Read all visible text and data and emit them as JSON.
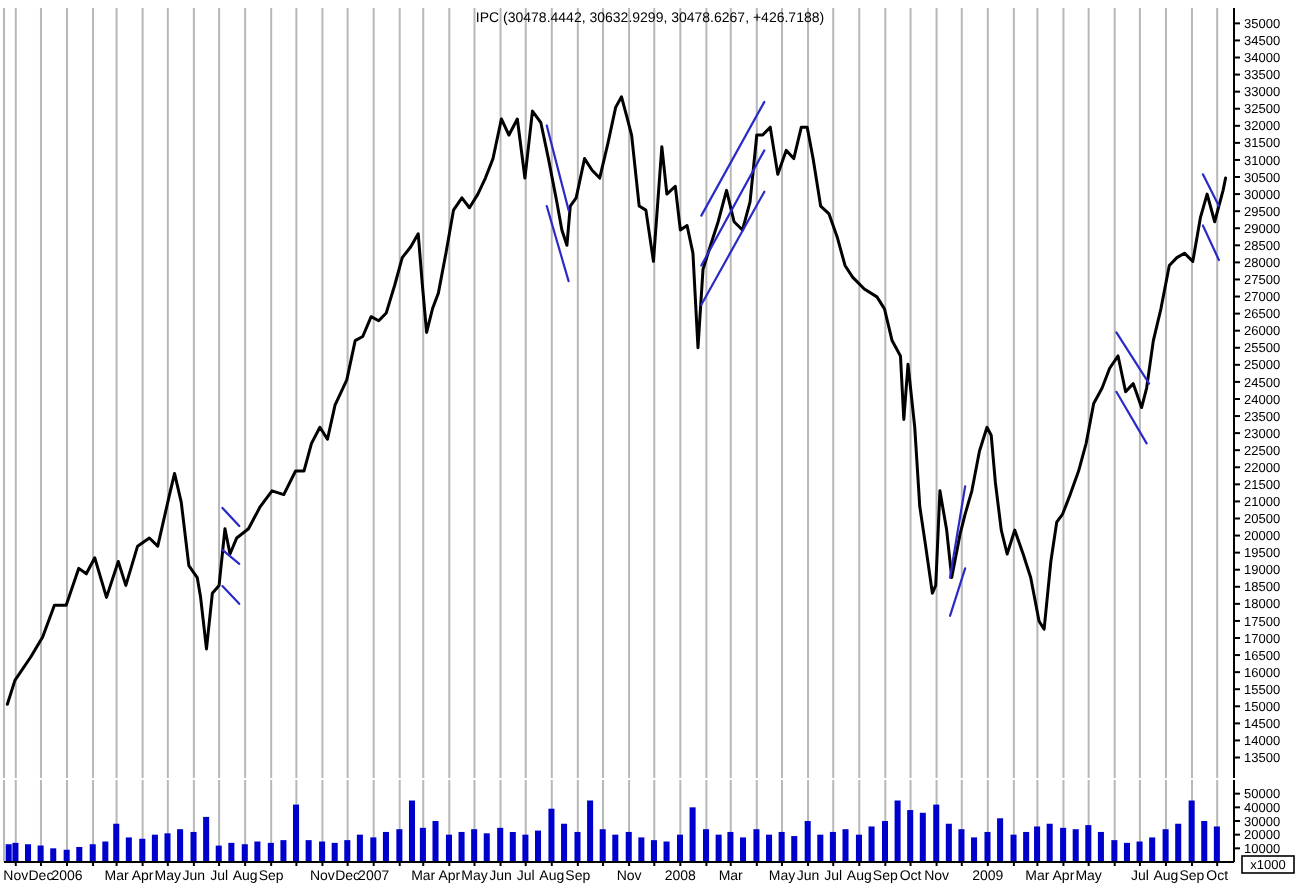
{
  "chart_data": [
    {
      "type": "line",
      "title": "IPC (30478.4442, 30632.9299, 30478.6267, +426.7188)",
      "xlim": [
        "2005-10-18",
        "2009-10-21"
      ],
      "xticks": [
        {
          "value": "2005-11",
          "label": null
        },
        {
          "value": "2005-12",
          "label": null
        },
        {
          "value": "2006-01",
          "label": null
        },
        {
          "value": "2006-02",
          "label": null
        },
        {
          "value": "2006-03",
          "label": null
        },
        {
          "value": "2006-04",
          "label": null
        },
        {
          "value": "2006-05",
          "label": null
        },
        {
          "value": "2006-06",
          "label": null
        },
        {
          "value": "2006-07",
          "label": null
        },
        {
          "value": "2006-08",
          "label": null
        },
        {
          "value": "2006-09",
          "label": null
        },
        {
          "value": "2006-10",
          "label": null
        },
        {
          "value": "2006-11",
          "label": null
        },
        {
          "value": "2006-12",
          "label": null
        },
        {
          "value": "2007-01",
          "label": null
        },
        {
          "value": "2007-02",
          "label": null
        },
        {
          "value": "2007-03",
          "label": null
        },
        {
          "value": "2007-04",
          "label": null
        },
        {
          "value": "2007-05",
          "label": null
        },
        {
          "value": "2007-06",
          "label": null
        },
        {
          "value": "2007-07",
          "label": null
        },
        {
          "value": "2007-08",
          "label": null
        },
        {
          "value": "2007-09",
          "label": null
        },
        {
          "value": "2007-10",
          "label": null
        },
        {
          "value": "2007-11",
          "label": null
        },
        {
          "value": "2007-12",
          "label": null
        },
        {
          "value": "2008-01",
          "label": null
        },
        {
          "value": "2008-02",
          "label": null
        },
        {
          "value": "2008-03",
          "label": null
        },
        {
          "value": "2008-04",
          "label": null
        },
        {
          "value": "2008-05",
          "label": null
        },
        {
          "value": "2008-06",
          "label": null
        },
        {
          "value": "2008-07",
          "label": null
        },
        {
          "value": "2008-08",
          "label": null
        },
        {
          "value": "2008-09",
          "label": null
        },
        {
          "value": "2008-10",
          "label": null
        },
        {
          "value": "2008-11",
          "label": null
        },
        {
          "value": "2008-12",
          "label": null
        },
        {
          "value": "2009-01",
          "label": null
        },
        {
          "value": "2009-02",
          "label": null
        },
        {
          "value": "2009-03",
          "label": null
        },
        {
          "value": "2009-04",
          "label": null
        },
        {
          "value": "2009-05",
          "label": null
        },
        {
          "value": "2009-06",
          "label": null
        },
        {
          "value": "2009-07",
          "label": null
        },
        {
          "value": "2009-08",
          "label": null
        },
        {
          "value": "2009-09",
          "label": null
        },
        {
          "value": "2009-10",
          "label": null
        }
      ],
      "ylim": [
        12900,
        35450
      ],
      "yticks": [
        35000,
        34500,
        34000,
        33500,
        33000,
        32500,
        32000,
        31500,
        31000,
        30500,
        30000,
        29500,
        29000,
        28500,
        28000,
        27500,
        27000,
        26500,
        26000,
        25500,
        25000,
        24500,
        24000,
        23500,
        23000,
        22500,
        22000,
        21500,
        21000,
        20500,
        20000,
        19500,
        19000,
        18500,
        18000,
        17500,
        17000,
        16500,
        16000,
        15500,
        15000,
        14500,
        14000,
        13500
      ],
      "grid": "x",
      "tick_labels": "y",
      "series": [
        {
          "color": "#000000",
          "x": [
            "2005-10-22",
            "2005-10-31",
            "2005-11-19",
            "2005-12-03",
            "2005-12-17",
            "2005-12-31",
            "2006-01-15",
            "2006-01-24",
            "2006-02-03",
            "2006-02-17",
            "2006-03-03",
            "2006-03-12",
            "2006-03-26",
            "2006-04-09",
            "2006-04-19",
            "2006-05-03",
            "2006-05-09",
            "2006-05-17",
            "2006-05-26",
            "2006-06-05",
            "2006-06-09",
            "2006-06-16",
            "2006-06-23",
            "2006-07-01",
            "2006-07-08",
            "2006-07-14",
            "2006-07-22",
            "2006-08-05",
            "2006-08-19",
            "2006-09-02",
            "2006-09-16",
            "2006-09-30",
            "2006-10-10",
            "2006-10-19",
            "2006-10-29",
            "2006-11-07",
            "2006-11-16",
            "2006-11-30",
            "2006-12-10",
            "2006-12-19",
            "2006-12-29",
            "2007-01-07",
            "2007-01-16",
            "2007-01-26",
            "2007-02-04",
            "2007-02-14",
            "2007-02-23",
            "2007-02-28",
            "2007-03-05",
            "2007-03-12",
            "2007-03-19",
            "2007-03-28",
            "2007-04-06",
            "2007-04-16",
            "2007-04-25",
            "2007-05-05",
            "2007-05-14",
            "2007-05-23",
            "2007-06-02",
            "2007-06-11",
            "2007-06-21",
            "2007-06-30",
            "2007-07-09",
            "2007-07-19",
            "2007-07-28",
            "2007-08-07",
            "2007-08-13",
            "2007-08-19",
            "2007-08-23",
            "2007-08-30",
            "2007-09-09",
            "2007-09-18",
            "2007-09-27",
            "2007-10-07",
            "2007-10-16",
            "2007-10-23",
            "2007-10-30",
            "2007-11-04",
            "2007-11-13",
            "2007-11-21",
            "2007-11-30",
            "2007-12-10",
            "2007-12-16",
            "2007-12-26",
            "2008-01-01",
            "2008-01-09",
            "2008-01-16",
            "2008-01-22",
            "2008-01-28",
            "2008-02-06",
            "2008-02-15",
            "2008-02-25",
            "2008-03-05",
            "2008-03-15",
            "2008-03-24",
            "2008-04-01",
            "2008-04-08",
            "2008-04-17",
            "2008-04-26",
            "2008-05-06",
            "2008-05-15",
            "2008-05-24",
            "2008-05-31",
            "2008-06-07",
            "2008-06-16",
            "2008-06-26",
            "2008-07-06",
            "2008-07-15",
            "2008-07-24",
            "2008-08-07",
            "2008-08-22",
            "2008-08-31",
            "2008-09-09",
            "2008-09-19",
            "2008-09-23",
            "2008-09-28",
            "2008-10-06",
            "2008-10-12",
            "2008-10-19",
            "2008-10-27",
            "2008-10-31",
            "2008-11-05",
            "2008-11-13",
            "2008-11-19",
            "2008-11-29",
            "2008-12-05",
            "2008-12-13",
            "2008-12-22",
            "2008-12-31",
            "2009-01-05",
            "2009-01-10",
            "2009-01-17",
            "2009-01-24",
            "2009-02-02",
            "2009-02-12",
            "2009-02-21",
            "2009-03-03",
            "2009-03-09",
            "2009-03-17",
            "2009-03-24",
            "2009-03-31",
            "2009-04-09",
            "2009-04-19",
            "2009-04-28",
            "2009-05-07",
            "2009-05-17",
            "2009-05-26",
            "2009-06-05",
            "2009-06-14",
            "2009-06-23",
            "2009-07-03",
            "2009-07-09",
            "2009-07-17",
            "2009-07-26",
            "2009-08-05",
            "2009-08-14",
            "2009-08-23",
            "2009-09-02",
            "2009-09-11",
            "2009-09-19",
            "2009-09-28",
            "2009-10-08",
            "2009-10-11"
          ],
          "values": [
            15060,
            15760,
            16450,
            17030,
            17960,
            17960,
            19040,
            18880,
            19350,
            18190,
            19240,
            18540,
            19690,
            19930,
            19690,
            21200,
            21820,
            20970,
            19120,
            18770,
            18190,
            16680,
            18310,
            18540,
            20200,
            19460,
            19930,
            20200,
            20850,
            21310,
            21200,
            21890,
            21890,
            22700,
            23170,
            22820,
            23820,
            24560,
            25710,
            25830,
            26410,
            26290,
            26520,
            27330,
            28140,
            28450,
            28840,
            27330,
            25950,
            26640,
            27100,
            28270,
            29530,
            29890,
            29600,
            30000,
            30470,
            31040,
            32200,
            31730,
            32200,
            30470,
            32430,
            32090,
            31040,
            29770,
            28950,
            28500,
            29650,
            29890,
            31040,
            30700,
            30470,
            31510,
            32540,
            32850,
            32200,
            31730,
            29650,
            29530,
            28030,
            31390,
            30000,
            30230,
            28950,
            29080,
            28270,
            25500,
            27800,
            28500,
            29190,
            30110,
            29190,
            28950,
            29770,
            31730,
            31730,
            31960,
            30580,
            31280,
            31040,
            31960,
            31960,
            31040,
            29650,
            29420,
            28720,
            27910,
            27570,
            27220,
            26990,
            26640,
            25710,
            25260,
            23400,
            25020,
            23170,
            20850,
            19690,
            18310,
            18540,
            21310,
            20160,
            18770,
            20050,
            20630,
            21310,
            22470,
            23170,
            22940,
            21550,
            20160,
            19460,
            20160,
            19460,
            18770,
            17490,
            17260,
            19240,
            20390,
            20630,
            21200,
            21890,
            22700,
            23870,
            24320,
            24900,
            25260,
            24210,
            24450,
            23750,
            24320,
            25710,
            26640,
            27910,
            28140,
            28270,
            28030,
            29310,
            30000,
            29190,
            30110,
            30470
          ]
        },
        {
          "color": "#2a2ac8",
          "x": [
            "2006-07-05",
            "2006-07-25"
          ],
          "values": [
            20810,
            20280
          ]
        },
        {
          "color": "#2a2ac8",
          "x": [
            "2006-07-05",
            "2006-07-25"
          ],
          "values": [
            19580,
            19170
          ]
        },
        {
          "color": "#2a2ac8",
          "x": [
            "2006-07-05",
            "2006-07-25"
          ],
          "values": [
            18520,
            18000
          ]
        },
        {
          "color": "#2a2ac8",
          "x": [
            "2007-07-26",
            "2007-08-21"
          ],
          "values": [
            32010,
            29530
          ]
        },
        {
          "color": "#2a2ac8",
          "x": [
            "2007-07-26",
            "2007-08-21"
          ],
          "values": [
            29650,
            27450
          ]
        },
        {
          "color": "#2a2ac8",
          "x": [
            "2008-01-26",
            "2008-04-10"
          ],
          "values": [
            29370,
            32700
          ]
        },
        {
          "color": "#2a2ac8",
          "x": [
            "2008-01-26",
            "2008-04-10"
          ],
          "values": [
            27910,
            31280
          ]
        },
        {
          "color": "#2a2ac8",
          "x": [
            "2008-01-26",
            "2008-04-10"
          ],
          "values": [
            26760,
            30070
          ]
        },
        {
          "color": "#2a2ac8",
          "x": [
            "2008-11-17",
            "2008-12-05"
          ],
          "values": [
            18770,
            21440
          ]
        },
        {
          "color": "#2a2ac8",
          "x": [
            "2008-11-17",
            "2008-12-05"
          ],
          "values": [
            17650,
            19040
          ]
        },
        {
          "color": "#2a2ac8",
          "x": [
            "2009-06-03",
            "2009-07-12"
          ],
          "values": [
            25950,
            24450
          ]
        },
        {
          "color": "#2a2ac8",
          "x": [
            "2009-06-03",
            "2009-07-09"
          ],
          "values": [
            24210,
            22700
          ]
        },
        {
          "color": "#2a2ac8",
          "x": [
            "2009-09-14",
            "2009-10-03"
          ],
          "values": [
            30580,
            29650
          ]
        },
        {
          "color": "#2a2ac8",
          "x": [
            "2009-09-14",
            "2009-10-03"
          ],
          "values": [
            29080,
            28070
          ]
        }
      ]
    },
    {
      "type": "bar",
      "ylabel": "x1000",
      "color": "#0000cc",
      "xlim": [
        "2005-10-18",
        "2009-10-21"
      ],
      "xticks": [
        {
          "value": "2005-11",
          "label": "Nov"
        },
        {
          "value": "2005-12",
          "label": "Dec"
        },
        {
          "value": "2006-01",
          "label": "2006"
        },
        {
          "value": "2006-02",
          "label": null
        },
        {
          "value": "2006-03",
          "label": "Mar"
        },
        {
          "value": "2006-04",
          "label": "Apr"
        },
        {
          "value": "2006-05",
          "label": "May"
        },
        {
          "value": "2006-06",
          "label": "Jun"
        },
        {
          "value": "2006-07",
          "label": "Jul"
        },
        {
          "value": "2006-08",
          "label": "Aug"
        },
        {
          "value": "2006-09",
          "label": "Sep"
        },
        {
          "value": "2006-10",
          "label": null
        },
        {
          "value": "2006-11",
          "label": "Nov"
        },
        {
          "value": "2006-12",
          "label": "Dec"
        },
        {
          "value": "2007-01",
          "label": "2007"
        },
        {
          "value": "2007-02",
          "label": null
        },
        {
          "value": "2007-03",
          "label": "Mar"
        },
        {
          "value": "2007-04",
          "label": "Apr"
        },
        {
          "value": "2007-05",
          "label": "May"
        },
        {
          "value": "2007-06",
          "label": "Jun"
        },
        {
          "value": "2007-07",
          "label": "Jul"
        },
        {
          "value": "2007-08",
          "label": "Aug"
        },
        {
          "value": "2007-09",
          "label": "Sep"
        },
        {
          "value": "2007-10",
          "label": null
        },
        {
          "value": "2007-11",
          "label": "Nov"
        },
        {
          "value": "2007-12",
          "label": null
        },
        {
          "value": "2008-01",
          "label": "2008"
        },
        {
          "value": "2008-02",
          "label": null
        },
        {
          "value": "2008-03",
          "label": "Mar"
        },
        {
          "value": "2008-04",
          "label": null
        },
        {
          "value": "2008-05",
          "label": "May"
        },
        {
          "value": "2008-06",
          "label": "Jun"
        },
        {
          "value": "2008-07",
          "label": "Jul"
        },
        {
          "value": "2008-08",
          "label": "Aug"
        },
        {
          "value": "2008-09",
          "label": "Sep"
        },
        {
          "value": "2008-10",
          "label": "Oct"
        },
        {
          "value": "2008-11",
          "label": "Nov"
        },
        {
          "value": "2008-12",
          "label": null
        },
        {
          "value": "2009-01",
          "label": "2009"
        },
        {
          "value": "2009-02",
          "label": null
        },
        {
          "value": "2009-03",
          "label": "Mar"
        },
        {
          "value": "2009-04",
          "label": "Apr"
        },
        {
          "value": "2009-05",
          "label": "May"
        },
        {
          "value": "2009-06",
          "label": null
        },
        {
          "value": "2009-07",
          "label": "Jul"
        },
        {
          "value": "2009-08",
          "label": "Aug"
        },
        {
          "value": "2009-09",
          "label": "Sep"
        },
        {
          "value": "2009-10",
          "label": "Oct"
        }
      ],
      "ylim": [
        0,
        60000
      ],
      "yticks": [
        10000,
        20000,
        30000,
        40000,
        50000
      ],
      "grid": "x",
      "x": [
        "2005-10-24",
        "2005-11-01",
        "2005-11-16",
        "2005-12-01",
        "2005-12-16",
        "2006-01-01",
        "2006-01-16",
        "2006-02-01",
        "2006-02-16",
        "2006-03-01",
        "2006-03-16",
        "2006-04-01",
        "2006-04-16",
        "2006-05-01",
        "2006-05-16",
        "2006-06-01",
        "2006-06-16",
        "2006-07-01",
        "2006-07-16",
        "2006-08-01",
        "2006-08-16",
        "2006-09-01",
        "2006-09-16",
        "2006-10-01",
        "2006-10-16",
        "2006-11-01",
        "2006-11-16",
        "2006-12-01",
        "2006-12-16",
        "2007-01-01",
        "2007-01-16",
        "2007-02-01",
        "2007-02-16",
        "2007-03-01",
        "2007-03-16",
        "2007-04-01",
        "2007-04-16",
        "2007-05-01",
        "2007-05-16",
        "2007-06-01",
        "2007-06-16",
        "2007-07-01",
        "2007-07-16",
        "2007-08-01",
        "2007-08-16",
        "2007-09-01",
        "2007-09-16",
        "2007-10-01",
        "2007-10-16",
        "2007-11-01",
        "2007-11-16",
        "2007-12-01",
        "2007-12-16",
        "2008-01-01",
        "2008-01-16",
        "2008-02-01",
        "2008-02-16",
        "2008-03-01",
        "2008-03-16",
        "2008-04-01",
        "2008-04-16",
        "2008-05-01",
        "2008-05-16",
        "2008-06-01",
        "2008-06-16",
        "2008-07-01",
        "2008-07-16",
        "2008-08-01",
        "2008-08-16",
        "2008-09-01",
        "2008-09-16",
        "2008-10-01",
        "2008-10-16",
        "2008-11-01",
        "2008-11-16",
        "2008-12-01",
        "2008-12-16",
        "2009-01-01",
        "2009-01-16",
        "2009-02-01",
        "2009-02-16",
        "2009-03-01",
        "2009-03-16",
        "2009-04-01",
        "2009-04-16",
        "2009-05-01",
        "2009-05-16",
        "2009-06-01",
        "2009-06-16",
        "2009-07-01",
        "2009-07-16",
        "2009-08-01",
        "2009-08-16",
        "2009-09-01",
        "2009-09-16",
        "2009-10-01"
      ],
      "values": [
        13000,
        14000,
        13000,
        12000,
        10000,
        9000,
        11000,
        13000,
        15000,
        28000,
        18000,
        17000,
        20000,
        21000,
        24000,
        22000,
        33000,
        12000,
        14000,
        13000,
        15000,
        14000,
        16000,
        42000,
        16000,
        15000,
        14000,
        16000,
        20000,
        18000,
        22000,
        24000,
        45000,
        25000,
        30000,
        20000,
        22000,
        24000,
        21000,
        25000,
        22000,
        20000,
        23000,
        39000,
        28000,
        22000,
        45000,
        24000,
        20000,
        22000,
        18000,
        16000,
        15000,
        20000,
        40000,
        24000,
        20000,
        22000,
        18000,
        24000,
        20000,
        22000,
        19000,
        30000,
        20000,
        22000,
        24000,
        20000,
        26000,
        30000,
        45000,
        38000,
        36000,
        42000,
        28000,
        24000,
        18000,
        22000,
        32000,
        20000,
        22000,
        26000,
        28000,
        25000,
        24000,
        27000,
        22000,
        16000,
        14000,
        15000,
        18000,
        24000,
        28000,
        45000,
        30000,
        26000
      ]
    }
  ]
}
